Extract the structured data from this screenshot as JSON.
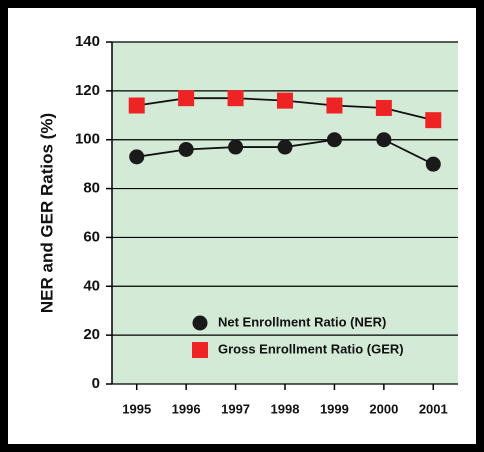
{
  "chart_data": {
    "type": "line",
    "y_label": "NER and GER Ratios (%)",
    "categories": [
      "1995",
      "1996",
      "1997",
      "1998",
      "1999",
      "2000",
      "2001"
    ],
    "series": [
      {
        "name": "Net Enrollment Ratio (NER)",
        "color": "#1a1a1a",
        "marker": "circle",
        "values": [
          93,
          96,
          97,
          97,
          100,
          100,
          90
        ]
      },
      {
        "name": "Gross Enrollment Ratio (GER)",
        "color": "#ee2424",
        "marker": "square",
        "values": [
          114,
          117,
          117,
          116,
          114,
          113,
          108
        ]
      }
    ],
    "ylim": [
      0,
      140
    ],
    "yticks": [
      0,
      20,
      40,
      60,
      80,
      100,
      120,
      140
    ],
    "grid": true,
    "legend": "lower right",
    "background": "#d3ead6"
  }
}
